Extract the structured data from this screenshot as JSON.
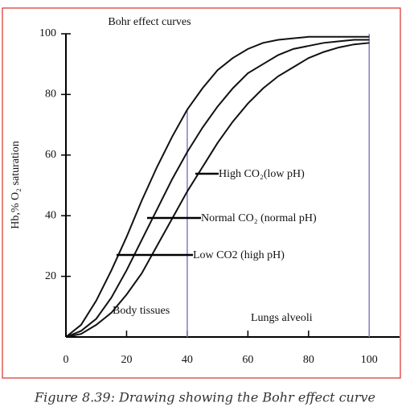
{
  "chart_data": {
    "type": "line",
    "title": "Bohr effect curves",
    "y_label": "Hb,% O₂ saturation",
    "caption": "Figure 8.39: Drawing showing the Bohr effect curve",
    "x": [
      0,
      5,
      10,
      15,
      20,
      25,
      30,
      35,
      40,
      45,
      50,
      55,
      60,
      65,
      70,
      75,
      80,
      85,
      90,
      95,
      100
    ],
    "series": [
      {
        "name": "Low CO2 (high pH)",
        "color": "#111111",
        "values": [
          0,
          4,
          12,
          22,
          33,
          45,
          56,
          66,
          75,
          82,
          88,
          92,
          95,
          97,
          98,
          98.5,
          99,
          99,
          99,
          99,
          99
        ]
      },
      {
        "name": "Normal CO₂ (normal pH)",
        "color": "#111111",
        "values": [
          0,
          2,
          6,
          13,
          22,
          32,
          42,
          52,
          61,
          69,
          76,
          82,
          87,
          90,
          93,
          95,
          96,
          97,
          97.5,
          98,
          98
        ]
      },
      {
        "name": "High CO₂(low pH)",
        "color": "#111111",
        "values": [
          0,
          1,
          4,
          8,
          14,
          21,
          30,
          39,
          48,
          56,
          64,
          71,
          77,
          82,
          86,
          89,
          92,
          94,
          95.5,
          96.5,
          97
        ]
      }
    ],
    "annotations": [
      "Body tissues",
      "Lungs alveoli"
    ],
    "vlines": [
      {
        "x": 40,
        "ymax": 75
      },
      {
        "x": 100,
        "ymax": 100
      }
    ],
    "vline_color": "#7f7fc4",
    "xlim": [
      0,
      110
    ],
    "ylim": [
      0,
      100
    ],
    "xticks": [
      0,
      20,
      40,
      60,
      80,
      100
    ],
    "yticks": [
      20,
      40,
      60,
      80,
      100
    ],
    "frame_color": "#d9302a"
  }
}
